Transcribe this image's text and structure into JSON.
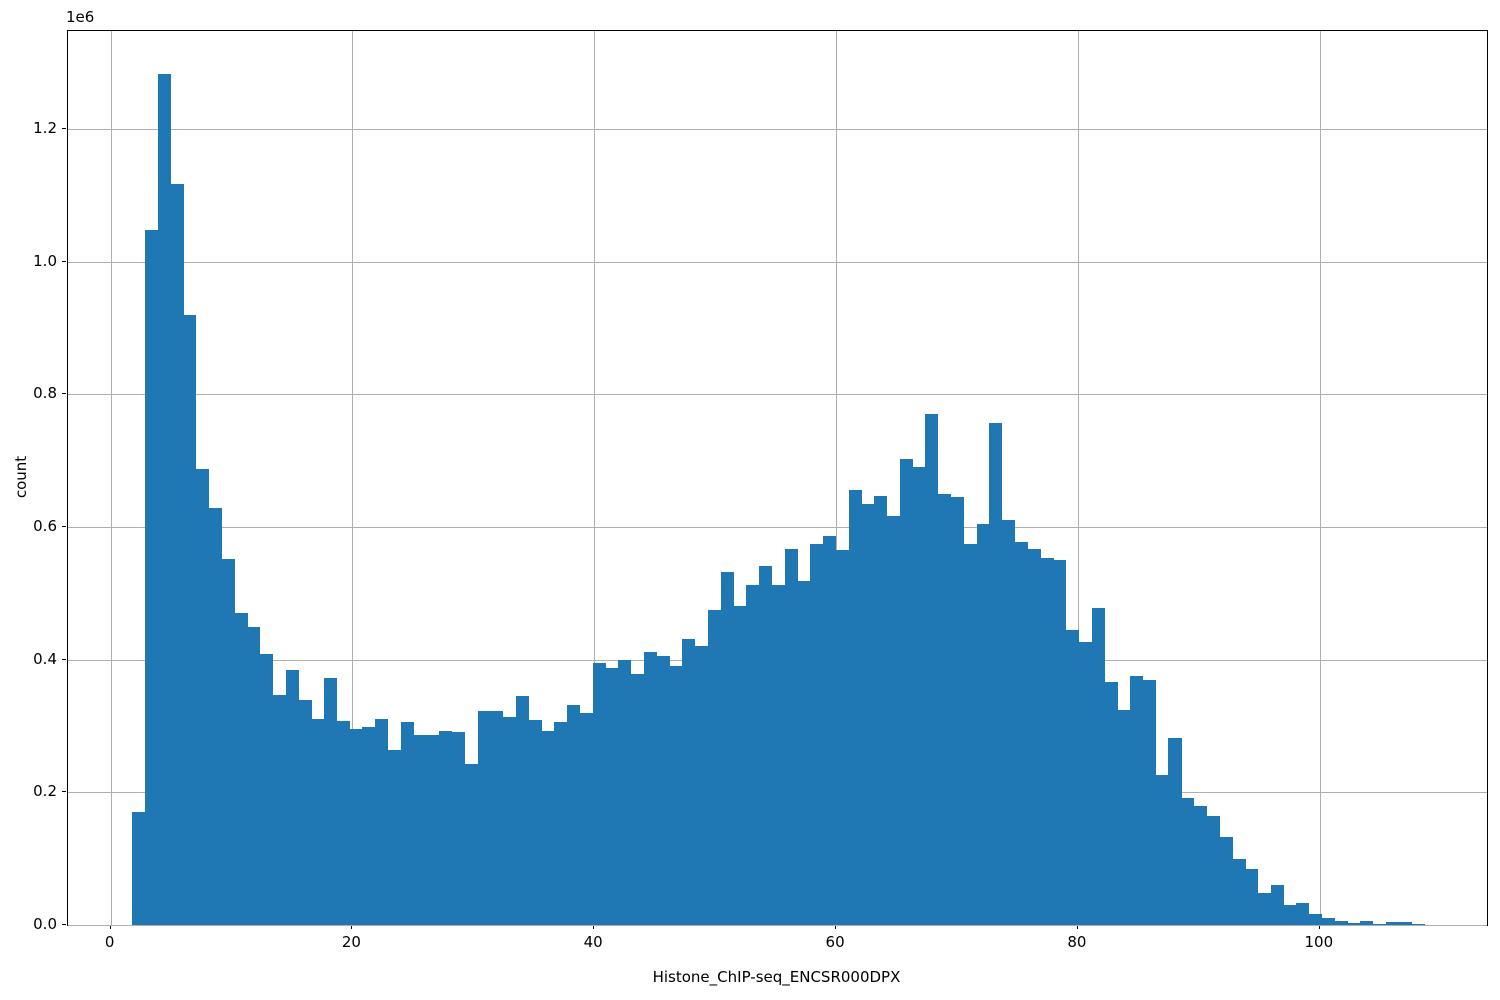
{
  "figure": {
    "background_color": "#ffffff",
    "bar_color": "#1f77b4",
    "grid_color": "#b0b0b0",
    "spine_color": "#000000",
    "text_color": "#000000"
  },
  "axes": {
    "xlabel": "Histone_ChIP-seq_ENCSR000DPX",
    "ylabel": "count",
    "offset_text": "1e6",
    "x_tick_labels": [
      "0",
      "20",
      "40",
      "60",
      "80",
      "100"
    ],
    "y_tick_labels": [
      "0.0",
      "0.2",
      "0.4",
      "0.6",
      "0.8",
      "1.0",
      "1.2"
    ]
  },
  "chart_data": {
    "type": "bar",
    "subtype": "histogram",
    "title": "",
    "xlabel": "Histone_ChIP-seq_ENCSR000DPX",
    "ylabel": "count",
    "legend": "none",
    "grid": "on",
    "xlim": [
      -3.52,
      113.83
    ],
    "ylim": [
      0,
      1347400
    ],
    "x_ticks": [
      0,
      20,
      40,
      60,
      80,
      100
    ],
    "y_ticks": [
      0,
      200000,
      400000,
      600000,
      800000,
      1000000,
      1200000
    ],
    "y_scale_note": "y tick labels shown divided by 1e6",
    "bin_start": 1.79,
    "bin_width": 1.058,
    "counts": [
      170000,
      1047000,
      1283000,
      1117000,
      920000,
      688000,
      629000,
      551000,
      471000,
      449000,
      409000,
      346000,
      384000,
      339000,
      310000,
      372000,
      308000,
      295000,
      299000,
      310000,
      264000,
      306000,
      287000,
      287000,
      293000,
      291000,
      243000,
      322000,
      322000,
      314000,
      345000,
      309000,
      293000,
      306000,
      332000,
      320000,
      395000,
      387000,
      399000,
      378000,
      412000,
      405000,
      390000,
      431000,
      421000,
      475000,
      532000,
      481000,
      512000,
      541000,
      513000,
      567000,
      519000,
      575000,
      587000,
      565000,
      655000,
      634000,
      646000,
      617000,
      703000,
      690000,
      770000,
      649000,
      645000,
      575000,
      605000,
      756000,
      610000,
      577000,
      566000,
      553000,
      550000,
      445000,
      426000,
      478000,
      367000,
      324000,
      375000,
      370000,
      226000,
      282000,
      191000,
      179000,
      165000,
      132000,
      99000,
      84000,
      48000,
      61000,
      30000,
      33000,
      16000,
      10000,
      6500,
      3500,
      6500,
      2000,
      4500,
      4500,
      1000
    ]
  }
}
